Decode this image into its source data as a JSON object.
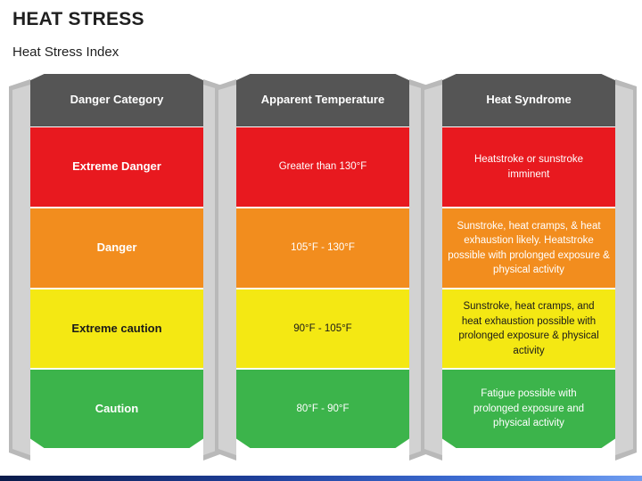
{
  "title": "HEAT STRESS",
  "subtitle": "Heat Stress Index",
  "columns": [
    {
      "header": "Danger Category",
      "rows": [
        "Extreme Danger",
        "Danger",
        "Extreme caution",
        "Caution"
      ]
    },
    {
      "header": "Apparent Temperature",
      "rows": [
        "Greater than 130°F",
        "105°F - 130°F",
        "90°F - 105°F",
        "80°F - 90°F"
      ]
    },
    {
      "header": "Heat Syndrome",
      "rows": [
        "Heatstroke or sunstroke imminent",
        "Sunstroke, heat cramps, & heat exhaustion likely. Heatstroke possible with prolonged exposure & physical activity",
        "Sunstroke, heat cramps, and heat exhaustion possible with prolonged exposure & physical activity",
        "Fatigue possible with prolonged exposure and physical activity"
      ]
    }
  ],
  "colors": {
    "header": "#555555",
    "extreme_danger": "#e8191f",
    "danger": "#f28d1e",
    "extreme_caution": "#f4e813",
    "caution": "#3cb44b",
    "frame": "#c8c8c8"
  }
}
